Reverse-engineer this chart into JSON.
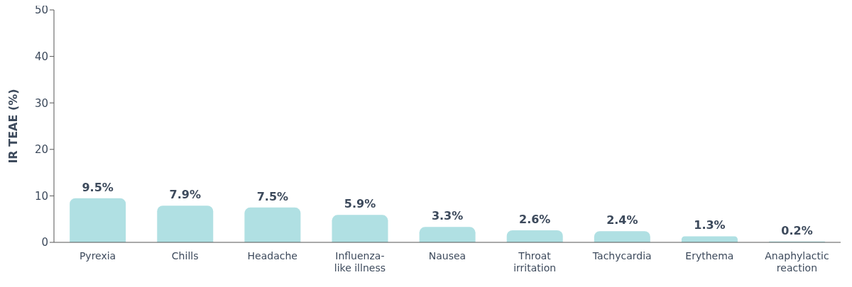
{
  "chart_data": {
    "type": "bar",
    "ylabel": "IR TEAE (%)",
    "categories": [
      "Pyrexia",
      "Chills",
      "Headache",
      "Influenza-\nlike illness",
      "Nausea",
      "Throat\nirritation",
      "Tachycardia",
      "Erythema",
      "Anaphylactic\nreaction"
    ],
    "values": [
      9.5,
      7.9,
      7.5,
      5.9,
      3.3,
      2.6,
      2.4,
      1.3,
      0.2
    ],
    "value_labels": [
      "9.5%",
      "7.9%",
      "7.5%",
      "5.9%",
      "3.3%",
      "2.6%",
      "2.4%",
      "1.3%",
      "0.2%"
    ],
    "color": "#b0e0e3",
    "ylim": [
      0,
      50
    ],
    "yticks": [
      0,
      10,
      20,
      30,
      40,
      50
    ],
    "grid": false
  }
}
